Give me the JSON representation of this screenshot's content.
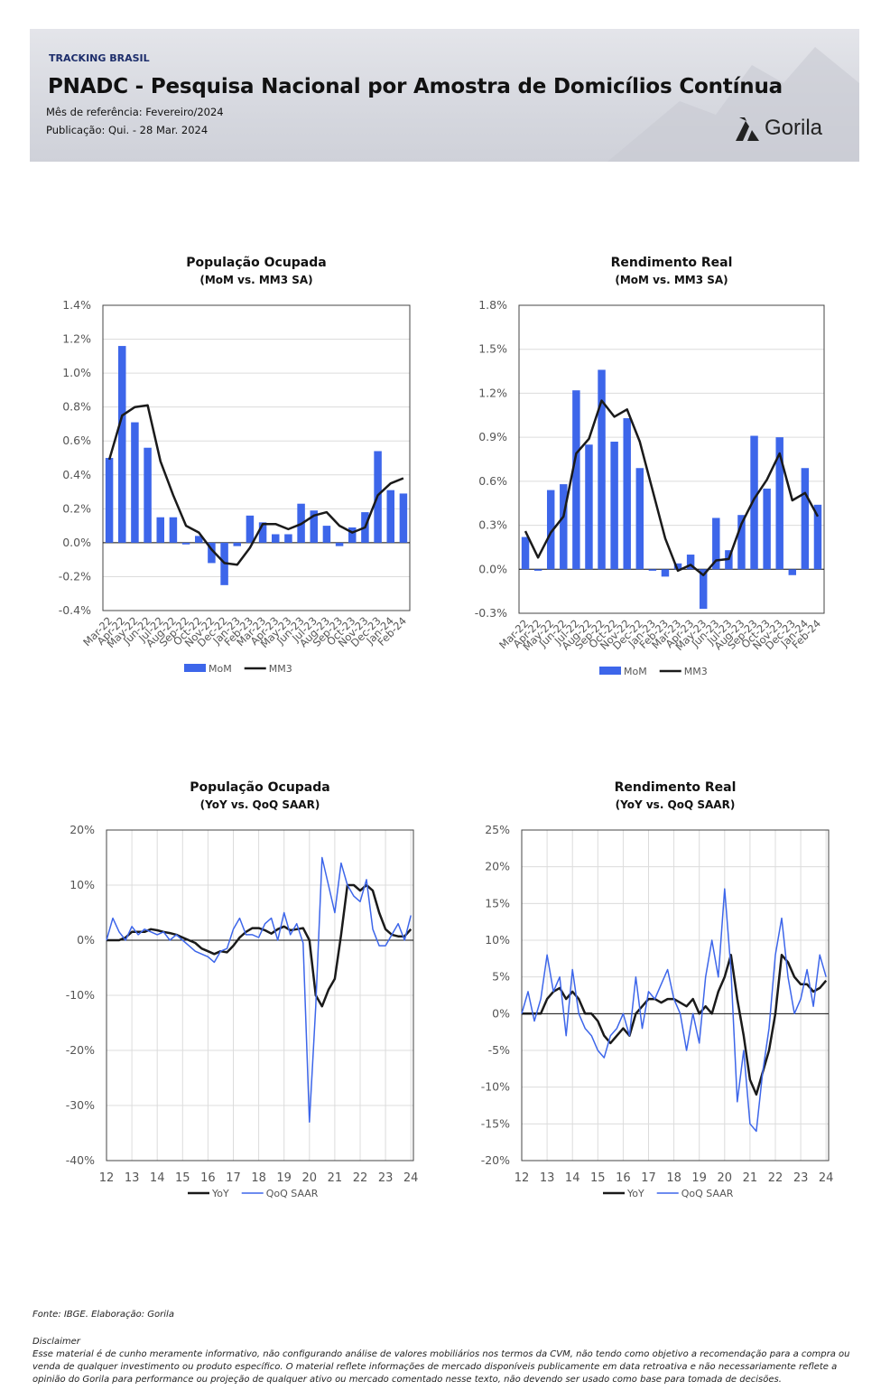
{
  "header": {
    "tag": "TRACKING BRASIL",
    "title": "PNADC - Pesquisa Nacional por Amostra de Domicílios Contínua",
    "reference": "Mês de referência: Fevereiro/2024",
    "publication": "Publicação:  Qui. - 28 Mar. 2024",
    "logo": "Gorila"
  },
  "chart_data": [
    {
      "type": "combo",
      "title": "População Ocupada",
      "subtitle": "(MoM vs. MM3 SA)",
      "categories": [
        "Mar-22",
        "Apr-22",
        "May-22",
        "Jun-22",
        "Jul-22",
        "Aug-22",
        "Sep-22",
        "Oct-22",
        "Nov-22",
        "Dec-22",
        "Jan-23",
        "Feb-23",
        "Mar-23",
        "Apr-23",
        "May-23",
        "Jun-23",
        "Jul-23",
        "Aug-23",
        "Sep-23",
        "Oct-23",
        "Nov-23",
        "Dec-23",
        "Jan-24",
        "Feb-24"
      ],
      "series": [
        {
          "name": "MoM",
          "type": "bar",
          "color": "#3d66ea",
          "values": [
            0.5,
            1.16,
            0.71,
            0.56,
            0.15,
            0.15,
            -0.01,
            0.04,
            -0.12,
            -0.25,
            -0.02,
            0.16,
            0.12,
            0.05,
            0.05,
            0.23,
            0.19,
            0.1,
            -0.02,
            0.09,
            0.18,
            0.54,
            0.31,
            0.29
          ]
        },
        {
          "name": "MM3",
          "type": "line",
          "color": "#1a1a1a",
          "values": [
            0.49,
            0.75,
            0.8,
            0.81,
            0.48,
            0.28,
            0.1,
            0.06,
            -0.04,
            -0.12,
            -0.13,
            -0.03,
            0.11,
            0.11,
            0.08,
            0.11,
            0.16,
            0.18,
            0.1,
            0.06,
            0.09,
            0.28,
            0.35,
            0.38
          ]
        }
      ],
      "ylim": [
        -0.4,
        1.4
      ],
      "yticks": [
        {
          "value": -0.4,
          "label": "-0.4%"
        },
        {
          "value": -0.2,
          "label": "-0.2%"
        },
        {
          "value": 0,
          "label": "0.0%"
        },
        {
          "value": 0.2,
          "label": "0.2%"
        },
        {
          "value": 0.4,
          "label": "0.4%"
        },
        {
          "value": 0.6,
          "label": "0.6%"
        },
        {
          "value": 0.8,
          "label": "0.8%"
        },
        {
          "value": 1.0,
          "label": "1.0%"
        },
        {
          "value": 1.2,
          "label": "1.2%"
        },
        {
          "value": 1.4,
          "label": "1.4%"
        }
      ],
      "grid": true
    },
    {
      "type": "combo",
      "title": "Rendimento Real",
      "subtitle": "(MoM vs. MM3 SA)",
      "categories": [
        "Mar-22",
        "Apr-22",
        "May-22",
        "Jun-22",
        "Jul-22",
        "Aug-22",
        "Sep-22",
        "Oct-22",
        "Nov-22",
        "Dec-22",
        "Jan-23",
        "Feb-23",
        "Mar-23",
        "Apr-23",
        "May-23",
        "Jun-23",
        "Jul-23",
        "Aug-23",
        "Sep-23",
        "Oct-23",
        "Nov-23",
        "Dec-23",
        "Jan-24",
        "Feb-24"
      ],
      "series": [
        {
          "name": "MoM",
          "type": "bar",
          "color": "#3d66ea",
          "values": [
            0.22,
            -0.01,
            0.54,
            0.58,
            1.22,
            0.85,
            1.36,
            0.87,
            1.03,
            0.69,
            -0.01,
            -0.05,
            0.04,
            0.1,
            -0.27,
            0.35,
            0.13,
            0.37,
            0.91,
            0.55,
            0.9,
            -0.04,
            0.69,
            0.44
          ]
        },
        {
          "name": "MM3",
          "type": "line",
          "color": "#1a1a1a",
          "values": [
            0.26,
            0.08,
            0.25,
            0.36,
            0.79,
            0.89,
            1.15,
            1.04,
            1.09,
            0.87,
            0.54,
            0.21,
            -0.01,
            0.03,
            -0.04,
            0.06,
            0.07,
            0.31,
            0.48,
            0.61,
            0.79,
            0.47,
            0.52,
            0.36
          ]
        }
      ],
      "ylim": [
        -0.3,
        1.8
      ],
      "yticks": [
        {
          "value": -0.3,
          "label": "-0.3%"
        },
        {
          "value": 0,
          "label": "0.0%"
        },
        {
          "value": 0.3,
          "label": "0.3%"
        },
        {
          "value": 0.6,
          "label": "0.6%"
        },
        {
          "value": 0.9,
          "label": "0.9%"
        },
        {
          "value": 1.2,
          "label": "1.2%"
        },
        {
          "value": 1.5,
          "label": "1.5%"
        },
        {
          "value": 1.8,
          "label": "1.8%"
        }
      ],
      "grid": true
    },
    {
      "type": "line",
      "title": "População Ocupada",
      "subtitle": "(YoY vs. QoQ SAAR)",
      "x": [
        2012,
        2012.25,
        2012.5,
        2012.75,
        2013,
        2013.25,
        2013.5,
        2013.75,
        2014,
        2014.25,
        2014.5,
        2014.75,
        2015,
        2015.25,
        2015.5,
        2015.75,
        2016,
        2016.25,
        2016.5,
        2016.75,
        2017,
        2017.25,
        2017.5,
        2017.75,
        2018,
        2018.25,
        2018.5,
        2018.75,
        2019,
        2019.25,
        2019.5,
        2019.75,
        2020,
        2020.25,
        2020.5,
        2020.75,
        2021,
        2021.25,
        2021.5,
        2021.75,
        2022,
        2022.25,
        2022.5,
        2022.75,
        2023,
        2023.25,
        2023.5,
        2023.75,
        2024
      ],
      "series": [
        {
          "name": "YoY",
          "color": "#1a1a1a",
          "values": [
            0,
            0,
            0,
            0.5,
            1.5,
            1.5,
            1.5,
            2,
            1.8,
            1.5,
            1.3,
            1,
            0.5,
            0,
            -0.5,
            -1.5,
            -2,
            -2.5,
            -2,
            -2.2,
            -1,
            0.5,
            1.5,
            2.2,
            2.2,
            1.8,
            1.2,
            2,
            2.5,
            1.8,
            2,
            2.2,
            0,
            -10,
            -12,
            -9,
            -7,
            1,
            10,
            10,
            9,
            10,
            9,
            5,
            2,
            1,
            0.7,
            0.7,
            2
          ]
        },
        {
          "name": "QoQ SAAR",
          "color": "#3d66ea",
          "values": [
            0,
            4,
            1.5,
            0,
            2.5,
            1,
            2,
            1.5,
            1,
            1.5,
            0,
            1,
            0,
            -1,
            -2,
            -2.5,
            -3,
            -4,
            -2,
            -1.5,
            2,
            4,
            1,
            1,
            0.5,
            3,
            4,
            0,
            5,
            1,
            3,
            -0.5,
            -33,
            -12,
            15,
            10,
            5,
            14,
            10,
            8,
            7,
            11,
            2,
            -1,
            -1,
            1,
            3,
            0,
            4.5
          ]
        }
      ],
      "xlim": [
        2012,
        2024.1
      ],
      "xticks": [
        {
          "value": 2012,
          "label": "12"
        },
        {
          "value": 2013,
          "label": "13"
        },
        {
          "value": 2014,
          "label": "14"
        },
        {
          "value": 2015,
          "label": "15"
        },
        {
          "value": 2016,
          "label": "16"
        },
        {
          "value": 2017,
          "label": "17"
        },
        {
          "value": 2018,
          "label": "18"
        },
        {
          "value": 2019,
          "label": "19"
        },
        {
          "value": 2020,
          "label": "20"
        },
        {
          "value": 2021,
          "label": "21"
        },
        {
          "value": 2022,
          "label": "22"
        },
        {
          "value": 2023,
          "label": "23"
        },
        {
          "value": 2024,
          "label": "24"
        }
      ],
      "ylim": [
        -40,
        20
      ],
      "yticks": [
        {
          "value": -40,
          "label": "-40%"
        },
        {
          "value": -30,
          "label": "-30%"
        },
        {
          "value": -20,
          "label": "-20%"
        },
        {
          "value": -10,
          "label": "-10%"
        },
        {
          "value": 0,
          "label": "0%"
        },
        {
          "value": 10,
          "label": "10%"
        },
        {
          "value": 20,
          "label": "20%"
        }
      ],
      "grid": true
    },
    {
      "type": "line",
      "title": "Rendimento Real",
      "subtitle": "(YoY vs. QoQ SAAR)",
      "x": [
        2012,
        2012.25,
        2012.5,
        2012.75,
        2013,
        2013.25,
        2013.5,
        2013.75,
        2014,
        2014.25,
        2014.5,
        2014.75,
        2015,
        2015.25,
        2015.5,
        2015.75,
        2016,
        2016.25,
        2016.5,
        2016.75,
        2017,
        2017.25,
        2017.5,
        2017.75,
        2018,
        2018.25,
        2018.5,
        2018.75,
        2019,
        2019.25,
        2019.5,
        2019.75,
        2020,
        2020.25,
        2020.5,
        2020.75,
        2021,
        2021.25,
        2021.5,
        2021.75,
        2022,
        2022.25,
        2022.5,
        2022.75,
        2023,
        2023.25,
        2023.5,
        2023.75,
        2024
      ],
      "series": [
        {
          "name": "YoY",
          "color": "#1a1a1a",
          "values": [
            0,
            0,
            0,
            0,
            2,
            3,
            3.5,
            2,
            3,
            2,
            0,
            0,
            -1,
            -3,
            -4,
            -3,
            -2,
            -3,
            0,
            1,
            2,
            2,
            1.5,
            2,
            2,
            1.5,
            1,
            2,
            0,
            1,
            0,
            3,
            5,
            8,
            2,
            -3,
            -9,
            -11,
            -8,
            -5,
            0,
            8,
            7,
            5,
            4,
            4,
            3,
            3.5,
            4.5
          ]
        },
        {
          "name": "QoQ SAAR",
          "color": "#3d66ea",
          "values": [
            0,
            3,
            -1,
            2,
            8,
            3,
            5,
            -3,
            6,
            0,
            -2,
            -3,
            -5,
            -6,
            -3,
            -2,
            0,
            -3,
            5,
            -2,
            3,
            2,
            4,
            6,
            2,
            0,
            -5,
            0,
            -4,
            5,
            10,
            5,
            17,
            6,
            -12,
            -5,
            -15,
            -16,
            -8,
            -2,
            8,
            13,
            5,
            0,
            2,
            6,
            1,
            8,
            5
          ]
        }
      ],
      "xlim": [
        2012,
        2024.1
      ],
      "xticks": [
        {
          "value": 2012,
          "label": "12"
        },
        {
          "value": 2013,
          "label": "13"
        },
        {
          "value": 2014,
          "label": "14"
        },
        {
          "value": 2015,
          "label": "15"
        },
        {
          "value": 2016,
          "label": "16"
        },
        {
          "value": 2017,
          "label": "17"
        },
        {
          "value": 2018,
          "label": "18"
        },
        {
          "value": 2019,
          "label": "19"
        },
        {
          "value": 2020,
          "label": "20"
        },
        {
          "value": 2021,
          "label": "21"
        },
        {
          "value": 2022,
          "label": "22"
        },
        {
          "value": 2023,
          "label": "23"
        },
        {
          "value": 2024,
          "label": "24"
        }
      ],
      "ylim": [
        -20,
        25
      ],
      "yticks": [
        {
          "value": -20,
          "label": "-20%"
        },
        {
          "value": -15,
          "label": "-15%"
        },
        {
          "value": -10,
          "label": "-10%"
        },
        {
          "value": -5,
          "label": "-5%"
        },
        {
          "value": 0,
          "label": "0%"
        },
        {
          "value": 5,
          "label": "5%"
        },
        {
          "value": 10,
          "label": "10%"
        },
        {
          "value": 15,
          "label": "15%"
        },
        {
          "value": 20,
          "label": "20%"
        },
        {
          "value": 25,
          "label": "25%"
        }
      ],
      "grid": true
    }
  ],
  "footer": {
    "source": "Fonte: IBGE. Elaboração: Gorila",
    "disclaimer_title": "Disclaimer",
    "disclaimer": "Esse material é de cunho meramente informativo, não configurando análise de valores mobiliários nos termos da CVM, não tendo como objetivo a recomendação para a compra ou venda de qualquer investimento ou produto específico. O material reflete informações de mercado disponíveis publicamente em data retroativa e não necessariamente reflete a opinião do Gorila para performance ou projeção de qualquer ativo ou mercado comentado nesse texto, não devendo ser usado como base para tomada de decisões."
  }
}
